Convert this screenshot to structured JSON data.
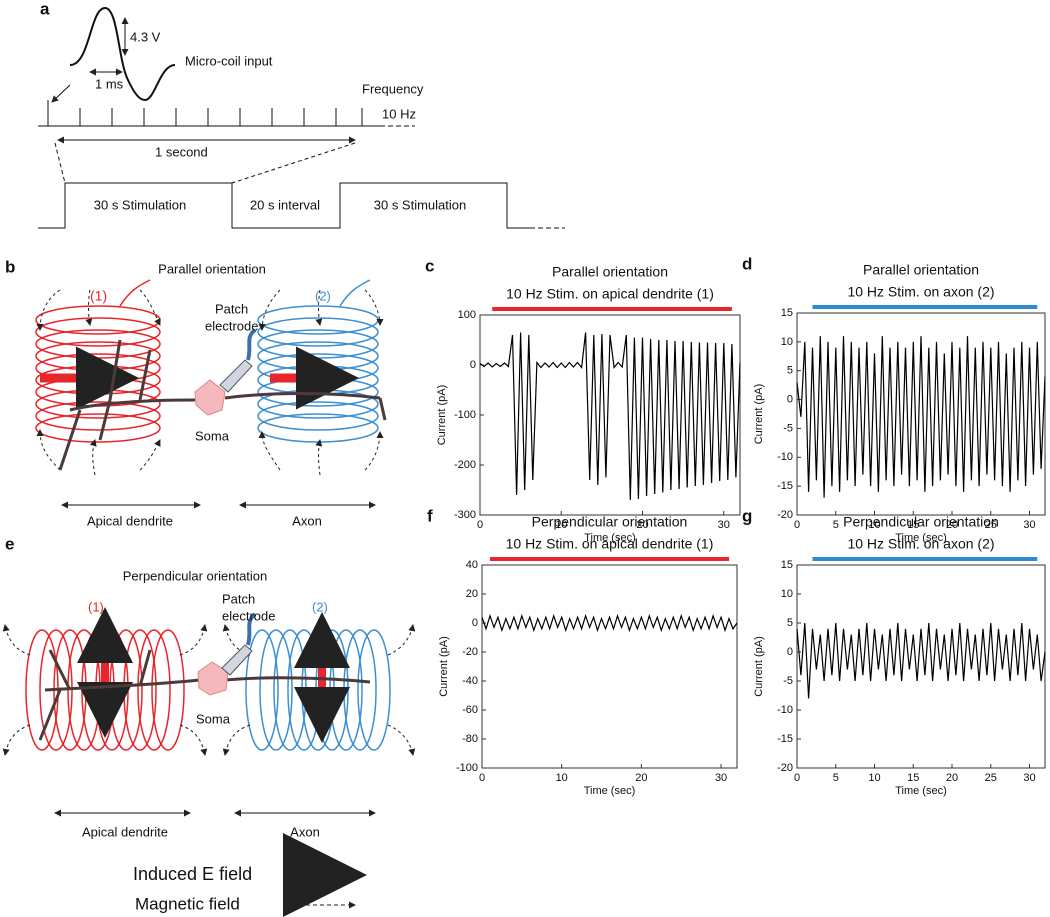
{
  "panel_a": {
    "label": "a",
    "amplitude": "4.3 V",
    "input": "Micro-coil input",
    "width": "1 ms",
    "frequency": "Frequency",
    "rate": "10 Hz",
    "period": "1 second",
    "blocks": [
      "30 s Stimulation",
      "20 s interval",
      "30 s Stimulation"
    ]
  },
  "panel_b": {
    "label": "b",
    "title": "Parallel orientation",
    "coil1": "(1)",
    "coil2": "(2)",
    "electrode": [
      "Patch",
      "electrode"
    ],
    "soma": "Soma",
    "dendrite": "Apical dendrite",
    "axon": "Axon"
  },
  "panel_e": {
    "label": "e",
    "title": "Perpendicular orientation",
    "coil1": "(1)",
    "coil2": "(2)",
    "electrode": [
      "Patch",
      "electrode"
    ],
    "soma": "Soma",
    "dendrite": "Apical dendrite",
    "axon": "Axon"
  },
  "legend": {
    "efield": "Induced E field",
    "bfield": "Magnetic field"
  },
  "chart_data": [
    {
      "type": "line",
      "label": "c",
      "title": "Parallel orientation",
      "subtitle": "10 Hz Stim. on apical dendrite (1)",
      "stim_range": [
        1.5,
        31
      ],
      "stim_color": "#e8252b",
      "xlabel": "Time (sec)",
      "ylabel": "Current (pA)",
      "color": "#000000",
      "xlim": [
        0,
        32
      ],
      "xticks": [
        0,
        10,
        20,
        30
      ],
      "ylim": [
        -300,
        100
      ],
      "yticks": [
        100,
        0,
        -100,
        -200,
        -300
      ],
      "x": [
        0,
        0.5,
        1,
        1.5,
        2,
        2.5,
        3,
        3.5,
        4,
        4.5,
        5,
        5.5,
        6,
        6.5,
        7,
        7.5,
        8,
        8.5,
        9,
        9.5,
        10,
        10.5,
        11,
        11.5,
        12,
        12.5,
        13,
        13.5,
        14,
        14.5,
        15,
        15.5,
        16,
        16.5,
        17,
        17.5,
        18,
        18.5,
        19,
        19.5,
        20,
        20.5,
        21,
        21.5,
        22,
        22.5,
        23,
        23.5,
        24,
        24.5,
        25,
        25.5,
        26,
        26.5,
        27,
        27.5,
        28,
        28.5,
        29,
        29.5,
        30,
        30.5,
        31,
        31.5,
        32
      ],
      "values": [
        3,
        -3,
        4,
        -4,
        3,
        -3,
        4,
        -3,
        60,
        -260,
        65,
        -250,
        60,
        -230,
        5,
        -5,
        4,
        -4,
        5,
        -5,
        4,
        -5,
        5,
        -4,
        5,
        -5,
        65,
        -230,
        60,
        -240,
        62,
        -225,
        60,
        -5,
        5,
        -4,
        60,
        -270,
        55,
        -268,
        55,
        -262,
        52,
        -258,
        50,
        -255,
        50,
        -250,
        48,
        -248,
        48,
        -245,
        46,
        -242,
        45,
        -240,
        45,
        -236,
        44,
        -232,
        44,
        -230,
        42,
        -225,
        5
      ]
    },
    {
      "type": "line",
      "label": "d",
      "title": "Parallel orientation",
      "subtitle": "10 Hz Stim. on axon (2)",
      "stim_range": [
        2,
        31
      ],
      "stim_color": "#2e8bd0",
      "xlabel": "Time (sec)",
      "ylabel": "Current (pA)",
      "color": "#000000",
      "xlim": [
        0,
        32
      ],
      "xticks": [
        0,
        5,
        10,
        15,
        20,
        25,
        30
      ],
      "ylim": [
        -20,
        15
      ],
      "yticks": [
        15,
        10,
        5,
        0,
        -5,
        -10,
        -15,
        -20
      ],
      "x": [
        0,
        0.5,
        1,
        1.5,
        2,
        2.5,
        3,
        3.5,
        4,
        4.5,
        5,
        5.5,
        6,
        6.5,
        7,
        7.5,
        8,
        8.5,
        9,
        9.5,
        10,
        10.5,
        11,
        11.5,
        12,
        12.5,
        13,
        13.5,
        14,
        14.5,
        15,
        15.5,
        16,
        16.5,
        17,
        17.5,
        18,
        18.5,
        19,
        19.5,
        20,
        20.5,
        21,
        21.5,
        22,
        22.5,
        23,
        23.5,
        24,
        24.5,
        25,
        25.5,
        26,
        26.5,
        27,
        27.5,
        28,
        28.5,
        29,
        29.5,
        30,
        30.5,
        31,
        31.5,
        32
      ],
      "values": [
        3,
        -3,
        10,
        -16,
        9,
        -14,
        11,
        -17,
        10,
        -15,
        9,
        -16,
        11,
        -14,
        10,
        -15,
        9,
        -13,
        10,
        -15,
        8,
        -16,
        11,
        -14,
        9,
        -15,
        10,
        -13,
        9,
        -15,
        10,
        -14,
        11,
        -16,
        9,
        -15,
        10,
        -14,
        8,
        -13,
        10,
        -15,
        9,
        -16,
        11,
        -14,
        9,
        -15,
        10,
        -13,
        9,
        -14,
        10,
        -15,
        8,
        -16,
        9,
        -14,
        10,
        -15,
        9,
        -13,
        10,
        -12,
        4
      ]
    },
    {
      "type": "line",
      "label": "f",
      "title": "Perpendicular orientation",
      "subtitle": "10 Hz Stim. on apical dendrite (1)",
      "stim_range": [
        1,
        31
      ],
      "stim_color": "#e8252b",
      "xlabel": "Time (sec)",
      "ylabel": "Current (pA)",
      "color": "#000000",
      "xlim": [
        0,
        32
      ],
      "xticks": [
        0,
        10,
        20,
        30
      ],
      "ylim": [
        -100,
        40
      ],
      "yticks": [
        40,
        20,
        0,
        -20,
        -40,
        -60,
        -80,
        -100
      ],
      "x": [
        0,
        0.5,
        1,
        1.5,
        2,
        2.5,
        3,
        3.5,
        4,
        4.5,
        5,
        5.5,
        6,
        6.5,
        7,
        7.5,
        8,
        8.5,
        9,
        9.5,
        10,
        10.5,
        11,
        11.5,
        12,
        12.5,
        13,
        13.5,
        14,
        14.5,
        15,
        15.5,
        16,
        16.5,
        17,
        17.5,
        18,
        18.5,
        19,
        19.5,
        20,
        20.5,
        21,
        21.5,
        22,
        22.5,
        23,
        23.5,
        24,
        24.5,
        25,
        25.5,
        26,
        26.5,
        27,
        27.5,
        28,
        28.5,
        29,
        29.5,
        30,
        30.5,
        31,
        31.5,
        32
      ],
      "values": [
        4,
        -4,
        5,
        -3,
        4,
        -5,
        3,
        -4,
        4,
        -4,
        5,
        -3,
        4,
        -5,
        3,
        -4,
        4,
        -4,
        5,
        -3,
        4,
        -5,
        3,
        -4,
        4,
        -4,
        5,
        -3,
        4,
        -5,
        3,
        -4,
        4,
        -4,
        5,
        -3,
        4,
        -5,
        3,
        -4,
        4,
        -4,
        5,
        -3,
        4,
        -5,
        3,
        -4,
        4,
        -4,
        5,
        -3,
        4,
        -5,
        3,
        -4,
        4,
        -4,
        5,
        -3,
        4,
        -5,
        3,
        -4,
        0
      ]
    },
    {
      "type": "line",
      "label": "g",
      "title": "Perpendicular orientation",
      "subtitle": "10 Hz Stim. on axon (2)",
      "stim_range": [
        2,
        31
      ],
      "stim_color": "#2e8bd0",
      "xlabel": "Time (sec)",
      "ylabel": "Current (pA)",
      "color": "#000000",
      "xlim": [
        0,
        32
      ],
      "xticks": [
        0,
        5,
        10,
        15,
        20,
        25,
        30
      ],
      "ylim": [
        -20,
        15
      ],
      "yticks": [
        15,
        10,
        5,
        0,
        -5,
        -10,
        -15,
        -20
      ],
      "x": [
        0,
        0.5,
        1,
        1.5,
        2,
        2.5,
        3,
        3.5,
        4,
        4.5,
        5,
        5.5,
        6,
        6.5,
        7,
        7.5,
        8,
        8.5,
        9,
        9.5,
        10,
        10.5,
        11,
        11.5,
        12,
        12.5,
        13,
        13.5,
        14,
        14.5,
        15,
        15.5,
        16,
        16.5,
        17,
        17.5,
        18,
        18.5,
        19,
        19.5,
        20,
        20.5,
        21,
        21.5,
        22,
        22.5,
        23,
        23.5,
        24,
        24.5,
        25,
        25.5,
        26,
        26.5,
        27,
        27.5,
        28,
        28.5,
        29,
        29.5,
        30,
        30.5,
        31,
        31.5,
        32
      ],
      "values": [
        4,
        -4,
        5,
        -8,
        4,
        -3,
        3,
        -5,
        4,
        -4,
        5,
        -5,
        4,
        -3,
        3,
        -5,
        4,
        -4,
        5,
        -5,
        4,
        -3,
        3,
        -5,
        4,
        -4,
        5,
        -5,
        4,
        -3,
        3,
        -5,
        4,
        -4,
        5,
        -5,
        4,
        -3,
        3,
        -5,
        4,
        -4,
        5,
        -5,
        4,
        -3,
        3,
        -5,
        4,
        -4,
        5,
        -5,
        4,
        -3,
        3,
        -5,
        4,
        -4,
        5,
        -5,
        4,
        -3,
        3,
        -5,
        0
      ]
    }
  ]
}
